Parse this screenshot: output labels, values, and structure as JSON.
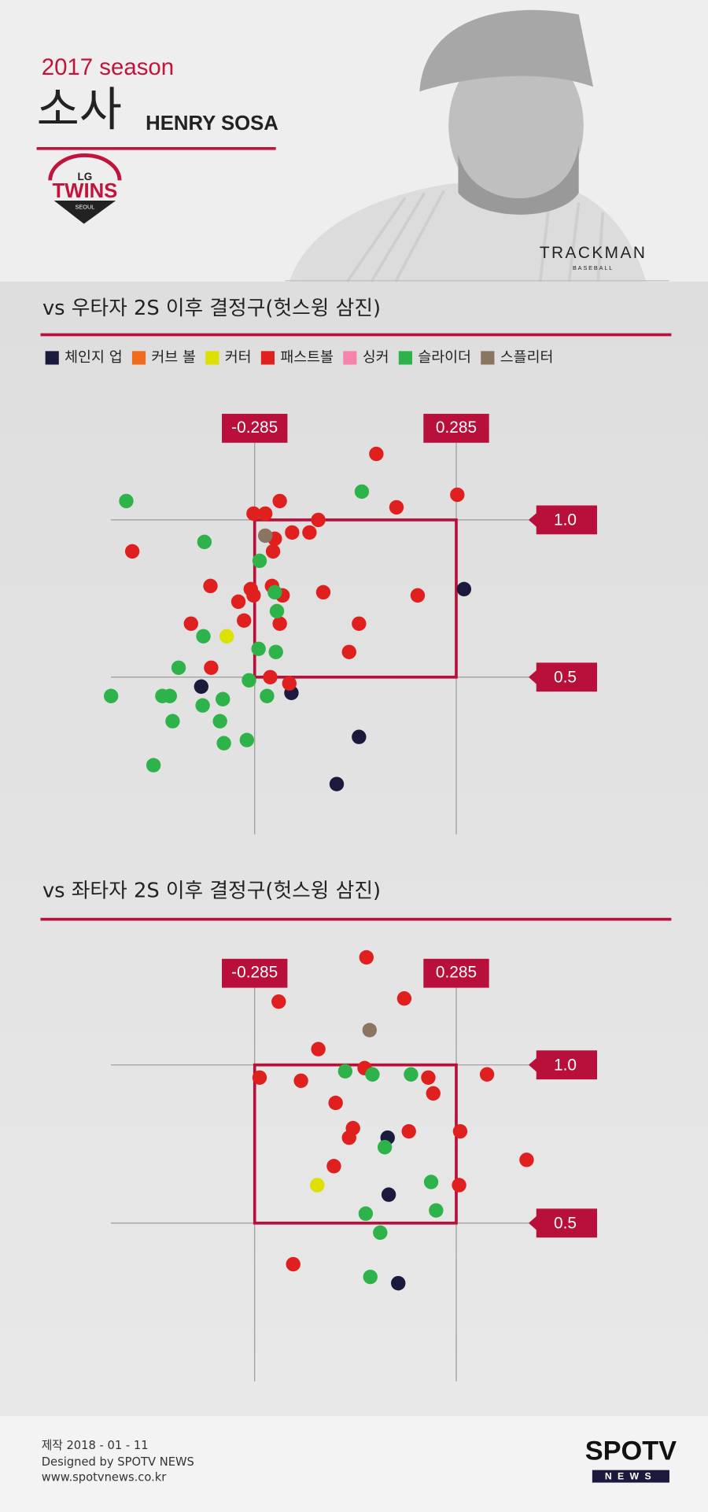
{
  "header": {
    "season": "2017 season",
    "name_ko": "소사",
    "name_en": "HENRY SOSA",
    "logo": {
      "top": "LG",
      "main": "TWINS",
      "bottom": "SEOUL"
    },
    "partner": {
      "main": "TRACKMAN",
      "sub": "BASEBALL"
    }
  },
  "chart_data": [
    {
      "type": "scatter",
      "title": "vs 우타자 2S 이후 결정구(헛스윙 삼진)",
      "xlim": [
        -0.75,
        0.75
      ],
      "xticks": [
        -0.285,
        0.285
      ],
      "ylim": [
        0,
        1.3
      ],
      "yticks": [
        {
          "value": 1,
          "label": "1.0"
        },
        0.5
      ],
      "legend": "top-left",
      "series": [
        {
          "name": "체인지 업",
          "color": "#1b1a3d",
          "x": [
            0.307,
            -0.436,
            -0.181,
            0.01,
            -0.053
          ],
          "values": [
            0.78,
            0.47,
            0.45,
            0.31,
            0.16
          ]
        },
        {
          "name": "커브 볼",
          "color": "#f26a1b",
          "x": [],
          "values": []
        },
        {
          "name": "커터",
          "color": "#dde000",
          "x": [
            -0.364
          ],
          "values": [
            0.63
          ]
        },
        {
          "name": "패스트볼",
          "color": "#e0201f",
          "x": [
            0.059,
            0.288,
            0.116,
            -0.214,
            -0.288,
            -0.255,
            -0.105,
            -0.179,
            -0.13,
            -0.228,
            -0.233,
            -0.631,
            -0.41,
            -0.296,
            -0.236,
            -0.288,
            -0.206,
            -0.331,
            -0.091,
            0.176,
            -0.315,
            -0.465,
            -0.214,
            0.01,
            -0.018,
            -0.408,
            -0.241,
            -0.187
          ],
          "values": [
            1.21,
            1.08,
            1.04,
            1.06,
            1.02,
            1.02,
            1.0,
            0.96,
            0.96,
            0.94,
            0.9,
            0.9,
            0.79,
            0.78,
            0.79,
            0.76,
            0.76,
            0.74,
            0.77,
            0.76,
            0.68,
            0.67,
            0.67,
            0.67,
            0.58,
            0.53,
            0.5,
            0.48
          ]
        },
        {
          "name": "싱커",
          "color": "#f783ac",
          "x": [],
          "values": []
        },
        {
          "name": "슬라이더",
          "color": "#2db34a",
          "x": [
            -0.648,
            0.018,
            -0.427,
            -0.271,
            -0.228,
            -0.222,
            -0.43,
            -0.274,
            -0.225,
            -0.5,
            -0.301,
            -0.691,
            -0.546,
            -0.525,
            -0.432,
            -0.375,
            -0.25,
            -0.517,
            -0.383,
            -0.372,
            -0.307,
            -0.571
          ],
          "values": [
            1.06,
            1.09,
            0.93,
            0.87,
            0.77,
            0.71,
            0.63,
            0.59,
            0.58,
            0.53,
            0.49,
            0.44,
            0.44,
            0.44,
            0.41,
            0.43,
            0.44,
            0.36,
            0.36,
            0.29,
            0.3,
            0.22
          ]
        },
        {
          "name": "스플리터",
          "color": "#8a7560",
          "x": [
            -0.255
          ],
          "values": [
            0.95
          ]
        }
      ]
    },
    {
      "type": "scatter",
      "title": "vs 좌타자 2S 이후 결정구(헛스윙 삼진)",
      "xlim": [
        -0.75,
        0.75
      ],
      "xticks": [
        -0.285,
        0.285
      ],
      "ylim": [
        0,
        1.4
      ],
      "yticks": [
        {
          "value": 1,
          "label": "1.0"
        },
        0.5
      ],
      "series": [
        {
          "color": "#1b1a3d",
          "x": [
            0.091,
            0.094,
            0.121
          ],
          "values": [
            0.77,
            0.59,
            0.31
          ]
        },
        {
          "color": "#dde000",
          "x": [
            -0.108
          ],
          "values": [
            0.62
          ]
        },
        {
          "color": "#e0201f",
          "x": [
            0.031,
            -0.217,
            0.138,
            -0.105,
            -0.271,
            -0.154,
            0.026,
            0.206,
            0.22,
            0.372,
            -0.056,
            -0.007,
            -0.018,
            0.151,
            0.296,
            0.484,
            -0.061,
            0.293,
            -0.176
          ],
          "values": [
            1.34,
            1.2,
            1.21,
            1.05,
            0.96,
            0.95,
            0.99,
            0.96,
            0.91,
            0.97,
            0.88,
            0.8,
            0.77,
            0.79,
            0.79,
            0.7,
            0.68,
            0.62,
            0.37
          ]
        },
        {
          "color": "#2db34a",
          "x": [
            -0.029,
            0.048,
            0.157,
            0.083,
            0.214,
            0.029,
            0.228,
            0.07,
            0.042
          ],
          "values": [
            0.98,
            0.97,
            0.97,
            0.74,
            0.63,
            0.53,
            0.54,
            0.47,
            0.33
          ]
        },
        {
          "color": "#8a7560",
          "x": [
            0.04
          ],
          "values": [
            1.11
          ]
        }
      ]
    }
  ],
  "footer": {
    "date": "제작 2018 - 01 - 11",
    "designer": "Designed by SPOTV NEWS",
    "url": "www.spotvnews.co.kr",
    "brand": {
      "main": "SPOTV",
      "sub": "NEWS"
    }
  }
}
